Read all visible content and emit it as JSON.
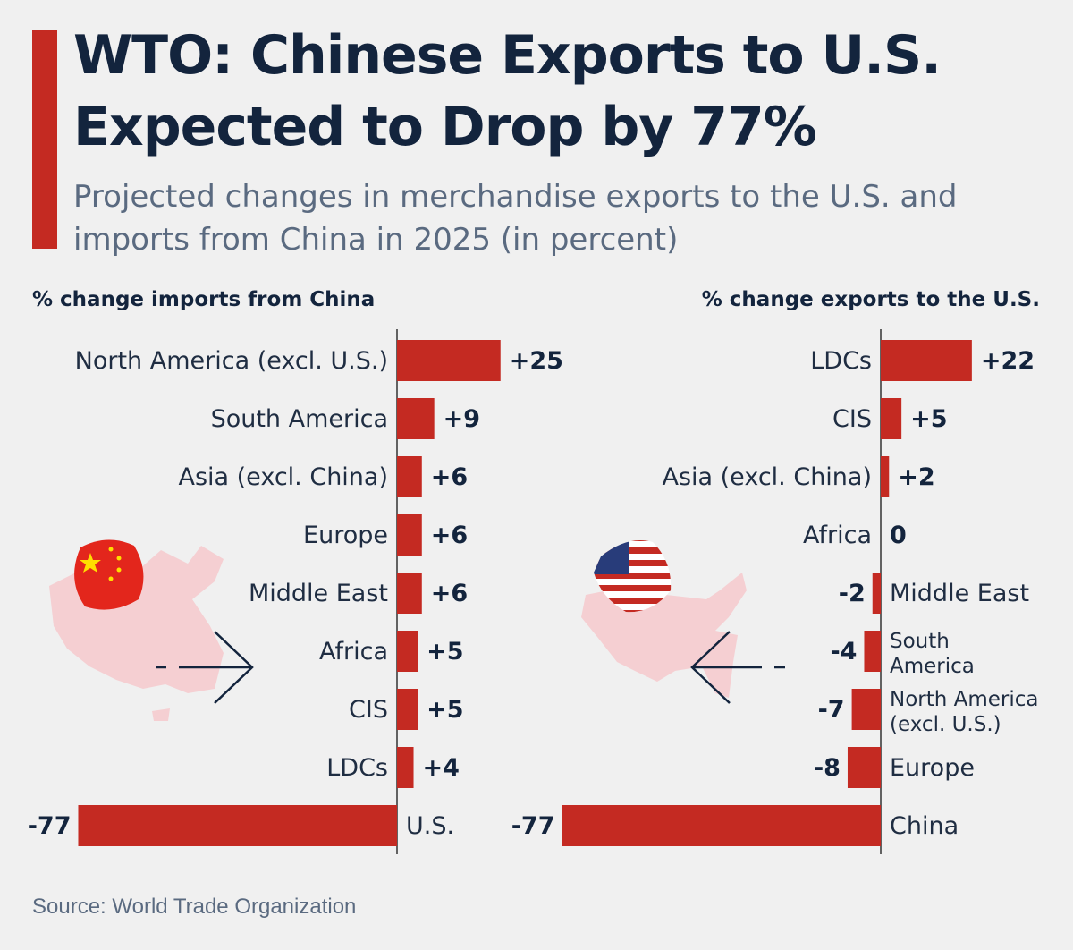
{
  "header": {
    "title": "WTO: Chinese Exports to U.S. Expected to Drop by 77%",
    "subtitle": "Projected changes in merchandise exports to the U.S. and imports from China in 2025 (in percent)"
  },
  "footer": {
    "source": "Source: World Trade Organization"
  },
  "colors": {
    "bar": "#c42a22",
    "title": "#13243d",
    "subtitle": "#5a6a80",
    "background": "#f0f0f0"
  },
  "icons": [
    "china-flag-icon",
    "china-map-icon",
    "right-arrow-icon",
    "us-flag-icon",
    "us-map-icon",
    "left-arrow-icon"
  ],
  "chart_data": [
    {
      "type": "bar",
      "orientation": "horizontal",
      "title": "% change imports from China",
      "categories": [
        "North America (excl. U.S.)",
        "South America",
        "Asia (excl. China)",
        "Europe",
        "Middle East",
        "Africa",
        "CIS",
        "LDCs",
        "U.S."
      ],
      "values": [
        25,
        9,
        6,
        6,
        6,
        5,
        5,
        4,
        -77
      ],
      "value_labels": [
        "+25",
        "+9",
        "+6",
        "+6",
        "+6",
        "+5",
        "+5",
        "+4",
        "-77"
      ],
      "xlim": [
        -77,
        25
      ],
      "grid": false
    },
    {
      "type": "bar",
      "orientation": "horizontal",
      "title": "% change exports to the U.S.",
      "categories": [
        [
          "LDCs"
        ],
        [
          "CIS"
        ],
        [
          "Asia (excl. China)"
        ],
        [
          "Africa"
        ],
        [
          "Middle East"
        ],
        [
          "South",
          "America"
        ],
        [
          "North America",
          "(excl. U.S.)"
        ],
        [
          "Europe"
        ],
        [
          "China"
        ]
      ],
      "values": [
        22,
        5,
        2,
        0,
        -2,
        -4,
        -7,
        -8,
        -77
      ],
      "value_labels": [
        "+22",
        "+5",
        "+2",
        "0",
        "-2",
        "-4",
        "-7",
        "-8",
        "-77"
      ],
      "xlim": [
        -77,
        22
      ],
      "grid": false
    }
  ]
}
